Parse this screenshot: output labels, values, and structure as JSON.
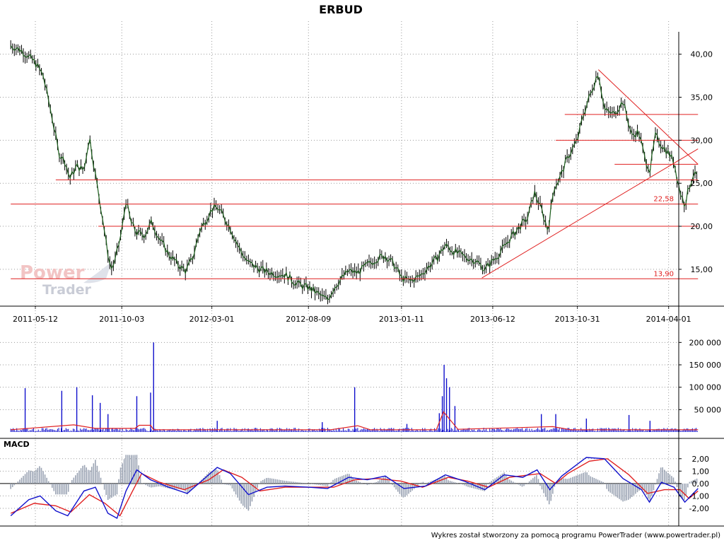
{
  "title": "ERBUD",
  "footer": "Wykres został stworzony za pomocą programu PowerTrader (www.powertrader.pl)",
  "watermark": {
    "line1": "Power",
    "line2": "Trader"
  },
  "colors": {
    "price_line": "#1a5c1a",
    "price_wick": "#000000",
    "trend_lines": "#e02020",
    "volume_bars": "#1010cc",
    "volume_avg": "#e02020",
    "macd_line": "#1010cc",
    "signal_line": "#e02020",
    "histogram": "#9aa3b3",
    "grid": "#9a9a9a"
  },
  "chart_data": [
    {
      "type": "line",
      "title": "ERBUD",
      "x_ticks": [
        "2011-05-12",
        "2011-10-03",
        "2012-03-01",
        "2012-08-09",
        "2013-01-11",
        "2013-06-12",
        "2013-10-31",
        "2014-04-01"
      ],
      "y_ticks": [
        "15,00",
        "20,00",
        "25,00",
        "30,00",
        "35,00",
        "40,00"
      ],
      "ylim": [
        10.8,
        42.6
      ],
      "grid": "dotted",
      "series": [
        {
          "points": [
            [
              "2011-04-01",
              41.0
            ],
            [
              "2011-04-20",
              40.4
            ],
            [
              "2011-05-12",
              39.0
            ],
            [
              "2011-05-25",
              37.5
            ],
            [
              "2011-06-08",
              33.0
            ],
            [
              "2011-06-20",
              28.5
            ],
            [
              "2011-07-01",
              27.5
            ],
            [
              "2011-07-08",
              25.5
            ],
            [
              "2011-07-20",
              27.0
            ],
            [
              "2011-08-01",
              26.5
            ],
            [
              "2011-08-10",
              30.5
            ],
            [
              "2011-08-20",
              26.0
            ],
            [
              "2011-09-01",
              21.0
            ],
            [
              "2011-09-08",
              17.5
            ],
            [
              "2011-09-15",
              15.0
            ],
            [
              "2011-09-22",
              16.0
            ],
            [
              "2011-10-03",
              19.5
            ],
            [
              "2011-10-10",
              23.0
            ],
            [
              "2011-10-18",
              20.5
            ],
            [
              "2011-10-28",
              19.2
            ],
            [
              "2011-11-10",
              19.0
            ],
            [
              "2011-11-22",
              20.5
            ],
            [
              "2011-12-05",
              18.5
            ],
            [
              "2011-12-20",
              16.8
            ],
            [
              "2012-01-05",
              15.5
            ],
            [
              "2012-01-18",
              14.8
            ],
            [
              "2012-01-30",
              16.5
            ],
            [
              "2012-02-10",
              19.5
            ],
            [
              "2012-02-22",
              21.0
            ],
            [
              "2012-03-01",
              22.0
            ],
            [
              "2012-03-10",
              22.2
            ],
            [
              "2012-03-20",
              21.2
            ],
            [
              "2012-04-01",
              19.8
            ],
            [
              "2012-04-15",
              17.5
            ],
            [
              "2012-04-30",
              15.8
            ],
            [
              "2012-05-15",
              15.2
            ],
            [
              "2012-06-01",
              14.7
            ],
            [
              "2012-06-15",
              14.5
            ],
            [
              "2012-07-01",
              14.4
            ],
            [
              "2012-07-15",
              13.6
            ],
            [
              "2012-08-01",
              13.0
            ],
            [
              "2012-08-09",
              12.9
            ],
            [
              "2012-08-20",
              12.4
            ],
            [
              "2012-09-01",
              11.8
            ],
            [
              "2012-09-10",
              11.5
            ],
            [
              "2012-09-20",
              12.8
            ],
            [
              "2012-10-01",
              13.8
            ],
            [
              "2012-10-15",
              14.8
            ],
            [
              "2012-10-30",
              14.6
            ],
            [
              "2012-11-15",
              15.5
            ],
            [
              "2012-11-30",
              16.2
            ],
            [
              "2012-12-15",
              16.6
            ],
            [
              "2012-12-30",
              15.5
            ],
            [
              "2013-01-11",
              14.0
            ],
            [
              "2013-01-25",
              13.6
            ],
            [
              "2013-02-10",
              14.2
            ],
            [
              "2013-02-25",
              15.3
            ],
            [
              "2013-03-10",
              16.2
            ],
            [
              "2013-03-25",
              17.8
            ],
            [
              "2013-04-10",
              17.0
            ],
            [
              "2013-04-25",
              16.5
            ],
            [
              "2013-05-15",
              16.0
            ],
            [
              "2013-05-30",
              15.0
            ],
            [
              "2013-06-12",
              16.0
            ],
            [
              "2013-06-25",
              17.0
            ],
            [
              "2013-07-10",
              18.5
            ],
            [
              "2013-07-25",
              19.8
            ],
            [
              "2013-08-10",
              21.0
            ],
            [
              "2013-08-20",
              24.0
            ],
            [
              "2013-09-01",
              22.0
            ],
            [
              "2013-09-12",
              19.5
            ],
            [
              "2013-09-22",
              24.5
            ],
            [
              "2013-10-01",
              25.5
            ],
            [
              "2013-10-15",
              28.0
            ],
            [
              "2013-10-31",
              30.0
            ],
            [
              "2013-11-10",
              33.0
            ],
            [
              "2013-11-20",
              35.0
            ],
            [
              "2013-12-05",
              38.0
            ],
            [
              "2013-12-15",
              33.5
            ],
            [
              "2013-12-30",
              33.0
            ],
            [
              "2014-01-15",
              34.5
            ],
            [
              "2014-01-30",
              30.5
            ],
            [
              "2014-02-10",
              31.0
            ],
            [
              "2014-02-20",
              28.0
            ],
            [
              "2014-03-01",
              26.5
            ],
            [
              "2014-03-10",
              30.5
            ],
            [
              "2014-03-20",
              29.5
            ],
            [
              "2014-04-01",
              28.5
            ],
            [
              "2014-04-10",
              27.5
            ],
            [
              "2014-04-20",
              24.0
            ],
            [
              "2014-04-28",
              22.5
            ],
            [
              "2014-05-05",
              24.5
            ],
            [
              "2014-05-12",
              26.0
            ],
            [
              "2014-05-20",
              25.8
            ]
          ]
        }
      ],
      "annotations": {
        "horizontal_lines": [
          {
            "value": 25.4,
            "from": "2011-06-15",
            "to": "2014-05-20"
          },
          {
            "value": 22.58,
            "from": "2011-04-01",
            "to": "2014-05-20",
            "label": "22,58"
          },
          {
            "value": 20.0,
            "from": "2011-08-25",
            "to": "2014-05-20"
          },
          {
            "value": 13.9,
            "from": "2011-04-01",
            "to": "2014-05-20",
            "label": "13,90"
          },
          {
            "value": 33.0,
            "from": "2013-10-10",
            "to": "2014-05-20"
          },
          {
            "value": 30.0,
            "from": "2013-09-25",
            "to": "2014-05-20"
          },
          {
            "value": 27.2,
            "from": "2014-01-01",
            "to": "2014-05-20"
          }
        ],
        "trend_lines": [
          {
            "from": [
              "2013-05-25",
              14.0
            ],
            "to": [
              "2014-05-20",
              29.0
            ]
          },
          {
            "from": [
              "2013-12-05",
              38.2
            ],
            "to": [
              "2014-05-20",
              27.2
            ]
          }
        ]
      }
    },
    {
      "type": "bar",
      "title": "",
      "y_ticks": [
        "50 000",
        "100 000",
        "150 000",
        "200 000"
      ],
      "ylim": [
        0,
        210000
      ],
      "spikes": [
        [
          "2011-04-25",
          98000
        ],
        [
          "2011-06-25",
          92000
        ],
        [
          "2011-07-20",
          100000
        ],
        [
          "2011-08-15",
          82000
        ],
        [
          "2011-08-28",
          65000
        ],
        [
          "2011-09-10",
          40000
        ],
        [
          "2011-10-28",
          80000
        ],
        [
          "2011-11-20",
          88000
        ],
        [
          "2011-11-25",
          200000
        ],
        [
          "2012-03-10",
          25000
        ],
        [
          "2012-09-01",
          22000
        ],
        [
          "2012-10-25",
          100000
        ],
        [
          "2013-01-20",
          18000
        ],
        [
          "2013-03-15",
          42000
        ],
        [
          "2013-03-20",
          80000
        ],
        [
          "2013-03-23",
          150000
        ],
        [
          "2013-03-27",
          120000
        ],
        [
          "2013-04-01",
          100000
        ],
        [
          "2013-04-10",
          58000
        ],
        [
          "2013-09-01",
          40000
        ],
        [
          "2013-09-25",
          40000
        ],
        [
          "2013-11-15",
          30000
        ],
        [
          "2014-01-25",
          38000
        ],
        [
          "2014-03-01",
          25000
        ]
      ],
      "baseline_volume": 5000,
      "average_line": [
        [
          "2011-04-01",
          5000
        ],
        [
          "2011-07-15",
          16000
        ],
        [
          "2011-08-20",
          8000
        ],
        [
          "2011-10-25",
          8000
        ],
        [
          "2011-11-01",
          15000
        ],
        [
          "2011-11-20",
          15000
        ],
        [
          "2011-11-25",
          5000
        ],
        [
          "2012-09-15",
          5000
        ],
        [
          "2012-10-30",
          14000
        ],
        [
          "2012-11-20",
          5000
        ],
        [
          "2013-03-10",
          5000
        ],
        [
          "2013-03-22",
          45000
        ],
        [
          "2013-04-15",
          6000
        ],
        [
          "2013-09-20",
          12000
        ],
        [
          "2013-10-20",
          5000
        ],
        [
          "2014-05-20",
          5000
        ]
      ]
    },
    {
      "type": "line",
      "title": "MACD",
      "y_ticks": [
        "-2,00",
        "-1,00",
        "0,00",
        "1,00",
        "2,00"
      ],
      "ylim": [
        -3.2,
        2.5
      ],
      "series": [
        {
          "points": [
            [
              "2011-04-01",
              -2.6
            ],
            [
              "2011-05-01",
              -1.3
            ],
            [
              "2011-05-20",
              -1.0
            ],
            [
              "2011-06-15",
              -2.2
            ],
            [
              "2011-07-05",
              -2.6
            ],
            [
              "2011-08-01",
              -0.6
            ],
            [
              "2011-08-20",
              -0.3
            ],
            [
              "2011-09-10",
              -2.4
            ],
            [
              "2011-09-25",
              -2.8
            ],
            [
              "2011-10-10",
              -0.6
            ],
            [
              "2011-10-28",
              1.1
            ],
            [
              "2011-11-20",
              0.3
            ],
            [
              "2011-12-20",
              -0.3
            ],
            [
              "2012-01-20",
              -0.8
            ],
            [
              "2012-02-20",
              0.5
            ],
            [
              "2012-03-10",
              1.3
            ],
            [
              "2012-04-01",
              0.8
            ],
            [
              "2012-05-01",
              -0.9
            ],
            [
              "2012-06-01",
              -0.3
            ],
            [
              "2012-07-01",
              -0.2
            ],
            [
              "2012-08-09",
              -0.3
            ],
            [
              "2012-09-10",
              -0.4
            ],
            [
              "2012-10-15",
              0.5
            ],
            [
              "2012-11-15",
              0.3
            ],
            [
              "2012-12-15",
              0.6
            ],
            [
              "2013-01-15",
              -0.4
            ],
            [
              "2013-02-20",
              -0.2
            ],
            [
              "2013-03-25",
              0.7
            ],
            [
              "2013-04-25",
              0.2
            ],
            [
              "2013-05-30",
              -0.5
            ],
            [
              "2013-07-01",
              0.7
            ],
            [
              "2013-08-01",
              0.5
            ],
            [
              "2013-08-25",
              1.1
            ],
            [
              "2013-09-15",
              -0.5
            ],
            [
              "2013-10-05",
              0.6
            ],
            [
              "2013-11-15",
              2.1
            ],
            [
              "2013-12-15",
              2.0
            ],
            [
              "2014-01-15",
              0.4
            ],
            [
              "2014-02-15",
              -0.5
            ],
            [
              "2014-02-28",
              -1.5
            ],
            [
              "2014-03-20",
              0.1
            ],
            [
              "2014-04-10",
              -0.3
            ],
            [
              "2014-04-28",
              -1.5
            ],
            [
              "2014-05-20",
              -0.4
            ]
          ]
        },
        {
          "points": [
            [
              "2011-04-01",
              -2.4
            ],
            [
              "2011-05-10",
              -1.6
            ],
            [
              "2011-06-15",
              -1.8
            ],
            [
              "2011-07-10",
              -2.3
            ],
            [
              "2011-08-10",
              -0.9
            ],
            [
              "2011-09-05",
              -1.6
            ],
            [
              "2011-09-30",
              -2.6
            ],
            [
              "2011-10-20",
              -0.7
            ],
            [
              "2011-11-05",
              0.8
            ],
            [
              "2011-12-05",
              0.1
            ],
            [
              "2012-01-15",
              -0.5
            ],
            [
              "2012-02-25",
              0.3
            ],
            [
              "2012-03-20",
              1.1
            ],
            [
              "2012-04-20",
              0.5
            ],
            [
              "2012-05-20",
              -0.6
            ],
            [
              "2012-07-01",
              -0.3
            ],
            [
              "2012-08-20",
              -0.3
            ],
            [
              "2012-09-20",
              -0.3
            ],
            [
              "2012-10-25",
              0.3
            ],
            [
              "2012-12-01",
              0.4
            ],
            [
              "2013-01-10",
              0.2
            ],
            [
              "2013-02-15",
              -0.3
            ],
            [
              "2013-03-30",
              0.5
            ],
            [
              "2013-05-01",
              0.2
            ],
            [
              "2013-06-05",
              -0.3
            ],
            [
              "2013-07-10",
              0.5
            ],
            [
              "2013-08-30",
              0.8
            ],
            [
              "2013-09-25",
              0.0
            ],
            [
              "2013-10-15",
              0.8
            ],
            [
              "2013-11-20",
              1.8
            ],
            [
              "2013-12-20",
              2.0
            ],
            [
              "2014-01-25",
              0.7
            ],
            [
              "2014-02-25",
              -0.8
            ],
            [
              "2014-03-25",
              -0.5
            ],
            [
              "2014-04-20",
              -0.5
            ],
            [
              "2014-05-05",
              -1.2
            ],
            [
              "2014-05-20",
              -0.6
            ]
          ]
        }
      ]
    }
  ]
}
